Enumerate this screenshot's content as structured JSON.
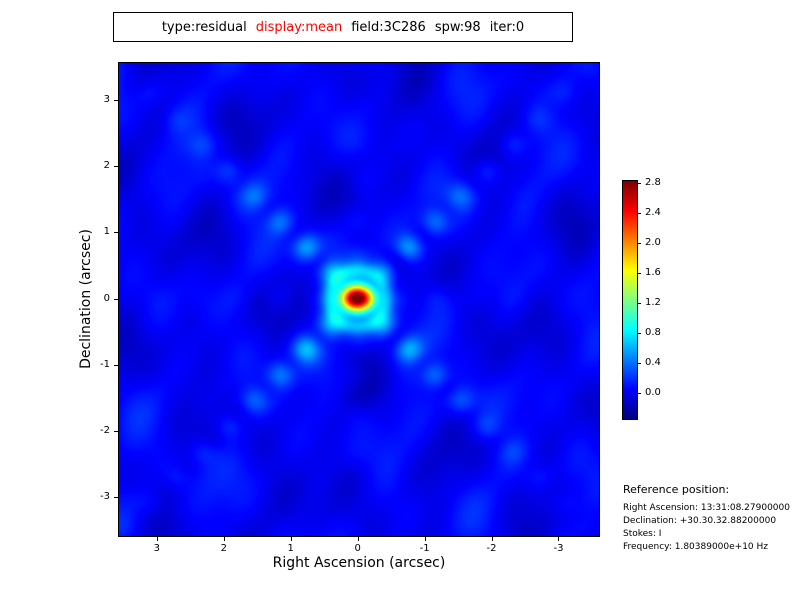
{
  "title": {
    "tokens": [
      {
        "text": "type:residual",
        "color": "#000000"
      },
      {
        "text": "display:mean",
        "color": "#ff0000"
      },
      {
        "text": "field:3C286",
        "color": "#000000"
      },
      {
        "text": "spw:98",
        "color": "#000000"
      },
      {
        "text": "iter:0",
        "color": "#000000"
      }
    ]
  },
  "plot": {
    "xlabel": "Right Ascension (arcsec)",
    "ylabel": "Declination (arcsec)",
    "x_ticks": [
      3,
      2,
      1,
      0,
      -1,
      -2,
      -3
    ],
    "y_ticks": [
      3,
      2,
      1,
      0,
      -1,
      -2,
      -3
    ]
  },
  "colorbar": {
    "ticks": [
      "2.8",
      "2.4",
      "2.0",
      "1.6",
      "1.2",
      "0.8",
      "0.4",
      "0.0"
    ],
    "vmin": -0.36,
    "vmax": 2.84,
    "colormap": "jet"
  },
  "reference": {
    "heading": "Reference position:",
    "lines": [
      "Right Ascension: 13:31:08.27900000",
      "Declination: +30.30.32.88200000",
      "Stokes: I",
      "Frequency: 1.80389000e+10 Hz"
    ]
  },
  "chart_data": {
    "type": "heatmap",
    "title": "type:residual  display:mean  field:3C286  spw:98  iter:0",
    "xlabel": "Right Ascension (arcsec)",
    "ylabel": "Declination (arcsec)",
    "xlim": [
      3.58,
      -3.62
    ],
    "ylim": [
      -3.6,
      3.57
    ],
    "x_ticks": [
      3,
      2,
      1,
      0,
      -1,
      -2,
      -3
    ],
    "y_ticks": [
      -3,
      -2,
      -1,
      0,
      1,
      2,
      3
    ],
    "colormap": "jet",
    "colorbar_ticks": [
      2.8,
      2.4,
      2.0,
      1.6,
      1.2,
      0.8,
      0.4,
      0.0
    ],
    "value_range": [
      -0.36,
      2.84
    ],
    "peak": {
      "x": 0.0,
      "y": 0.0,
      "value": 2.84
    },
    "features": "residual image of point source 3C286: bright compact peak at origin with X-shaped diagonal sidelobe chains fading outward over a mottled dark-blue background near zero"
  }
}
